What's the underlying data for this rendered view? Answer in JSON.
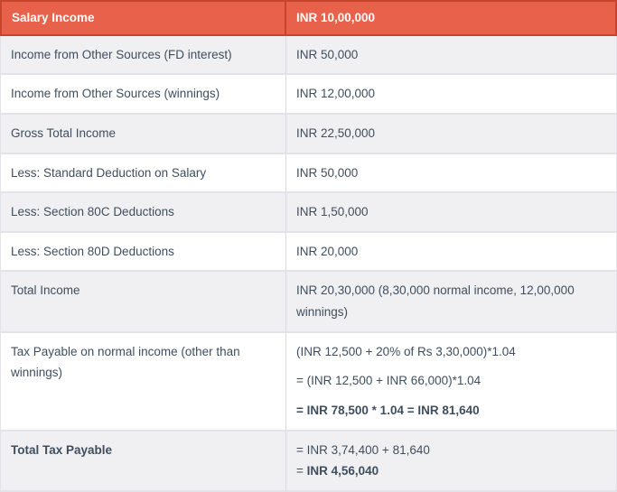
{
  "colors": {
    "header_bg": "#e8614a",
    "header_border": "#c7452e",
    "header_text": "#ffffff",
    "row_bg": "#ffffff",
    "row_alt_bg": "#f0f0f2",
    "row_border": "#e2e2e8",
    "col_divider": "#dadade",
    "text": "#3f4e5e"
  },
  "table": {
    "header": {
      "label": "Salary Income",
      "value": "INR 10,00,000"
    },
    "rows": [
      {
        "label": "Income from Other Sources (FD interest)",
        "label_bold": false,
        "value_lines": [
          {
            "spaced": false,
            "segments": [
              {
                "text": "INR 50,000",
                "bold": false
              }
            ]
          }
        ]
      },
      {
        "label": "Income from Other Sources (winnings)",
        "label_bold": false,
        "value_lines": [
          {
            "spaced": false,
            "segments": [
              {
                "text": "INR 12,00,000",
                "bold": false
              }
            ]
          }
        ]
      },
      {
        "label": "Gross Total Income",
        "label_bold": false,
        "value_lines": [
          {
            "spaced": false,
            "segments": [
              {
                "text": "INR 22,50,000",
                "bold": false
              }
            ]
          }
        ]
      },
      {
        "label": "Less: Standard Deduction on Salary",
        "label_bold": false,
        "value_lines": [
          {
            "spaced": false,
            "segments": [
              {
                "text": "INR 50,000",
                "bold": false
              }
            ]
          }
        ]
      },
      {
        "label": "Less: Section 80C Deductions",
        "label_bold": false,
        "value_lines": [
          {
            "spaced": false,
            "segments": [
              {
                "text": "INR 1,50,000",
                "bold": false
              }
            ]
          }
        ]
      },
      {
        "label": "Less: Section 80D Deductions",
        "label_bold": false,
        "value_lines": [
          {
            "spaced": false,
            "segments": [
              {
                "text": "INR 20,000",
                "bold": false
              }
            ]
          }
        ]
      },
      {
        "label": "Total Income",
        "label_bold": false,
        "value_lines": [
          {
            "spaced": false,
            "segments": [
              {
                "text": "INR 20,30,000 (8,30,000 normal income, 12,00,000 winnings)",
                "bold": false
              }
            ]
          }
        ]
      },
      {
        "label": "Tax Payable on normal income (other than winnings)",
        "label_bold": false,
        "value_lines": [
          {
            "spaced": true,
            "segments": [
              {
                "text": "(INR 12,500 + 20% of Rs 3,30,000)*1.04",
                "bold": false
              }
            ]
          },
          {
            "spaced": true,
            "segments": [
              {
                "text": "= (INR 12,500 + INR 66,000)*1.04",
                "bold": false
              }
            ]
          },
          {
            "spaced": true,
            "segments": [
              {
                "text": "= INR 78,500 * 1.04 = INR 81,640",
                "bold": true
              }
            ]
          }
        ]
      },
      {
        "label": "Total Tax Payable",
        "label_bold": true,
        "value_lines": [
          {
            "spaced": false,
            "segments": [
              {
                "text": "= INR 3,74,400 + 81,640",
                "bold": false
              }
            ]
          },
          {
            "spaced": false,
            "segments": [
              {
                "text": "= ",
                "bold": false
              },
              {
                "text": "INR 4,56,040",
                "bold": true
              }
            ]
          }
        ]
      }
    ]
  }
}
